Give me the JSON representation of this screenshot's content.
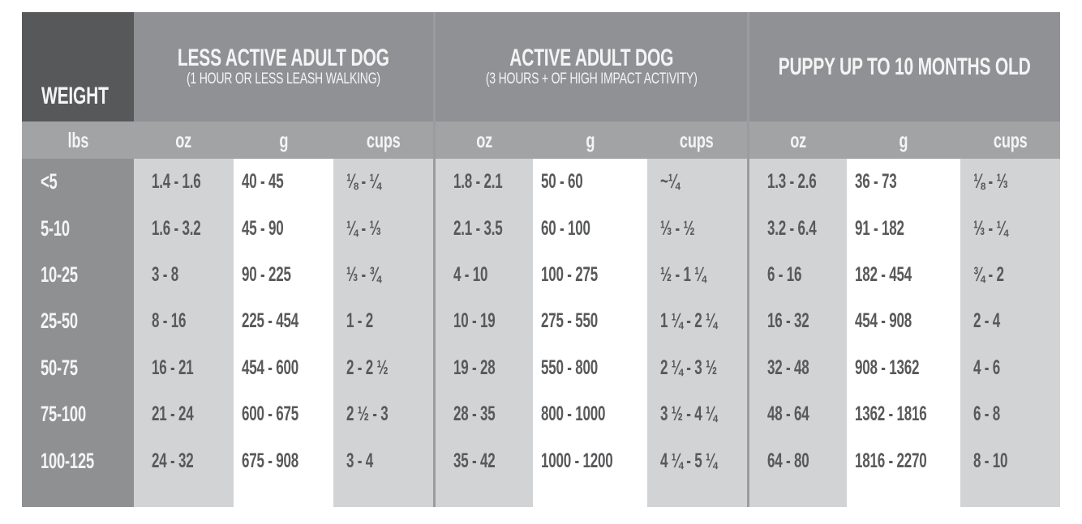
{
  "colors": {
    "page_bg": "#FFFFFF",
    "weight_head_bg": "#57585A",
    "section_head_bg": "#909194",
    "subhead_bg": "#A2A3A5",
    "lbs_col_bg": "#8F9092",
    "light_col_bg": "#D2D3D4",
    "white_col_bg": "#FFFFFF",
    "divider": "#9B9C9E",
    "text_dark": "#58595B",
    "text_light": "#F4F4F5"
  },
  "table": {
    "weight_header": "WEIGHT",
    "weight_unit": "lbs",
    "sections": [
      {
        "title": "LESS ACTIVE ADULT DOG",
        "subtitle": "(1 HOUR OR LESS LEASH WALKING)",
        "units": [
          "oz",
          "g",
          "cups"
        ]
      },
      {
        "title": "ACTIVE ADULT DOG",
        "subtitle": "(3 HOURS + OF HIGH IMPACT ACTIVITY)",
        "units": [
          "oz",
          "g",
          "cups"
        ]
      },
      {
        "title": "PUPPY UP TO 10 MONTHS OLD",
        "subtitle": "",
        "units": [
          "oz",
          "g",
          "cups"
        ]
      }
    ],
    "rows": [
      {
        "weight": "<5",
        "cells": [
          "1.4 - 1.6",
          "40 - 45",
          "⅛ - ¼",
          "1.8 - 2.1",
          "50 - 60",
          "~¼",
          "1.3 - 2.6",
          "36 - 73",
          "⅛ - ⅓"
        ]
      },
      {
        "weight": "5-10",
        "cells": [
          "1.6 - 3.2",
          "45 - 90",
          "¼ - ⅓",
          "2.1 - 3.5",
          "60 - 100",
          "⅓ - ½",
          "3.2 - 6.4",
          "91 - 182",
          "⅓ - ¼"
        ]
      },
      {
        "weight": "10-25",
        "cells": [
          "3 - 8",
          "90 - 225",
          "⅓ - ¾",
          "4 - 10",
          "100 - 275",
          "½ - 1 ¼",
          "6 - 16",
          "182 - 454",
          "¾ - 2"
        ]
      },
      {
        "weight": "25-50",
        "cells": [
          "8 - 16",
          "225 - 454",
          "1 - 2",
          "10 - 19",
          "275 - 550",
          "1 ¼ - 2 ¼",
          "16 - 32",
          "454 - 908",
          "2 - 4"
        ]
      },
      {
        "weight": "50-75",
        "cells": [
          "16 - 21",
          "454 - 600",
          "2 - 2 ½",
          "19 - 28",
          "550 - 800",
          "2 ¼ - 3 ½",
          "32 - 48",
          "908 - 1362",
          "4 - 6"
        ]
      },
      {
        "weight": "75-100",
        "cells": [
          "21 - 24",
          "600 - 675",
          "2 ½ - 3",
          "28 - 35",
          "800 - 1000",
          "3 ½ - 4 ¼",
          "48 - 64",
          "1362 - 1816",
          "6 - 8"
        ]
      },
      {
        "weight": "100-125",
        "cells": [
          "24 - 32",
          "675 - 908",
          "3 - 4",
          "35 - 42",
          "1000 - 1200",
          "4 ¼ - 5 ¼",
          "64 - 80",
          "1816 - 2270",
          "8 - 10"
        ]
      }
    ]
  },
  "chart_data": {
    "type": "table",
    "row_header_label": "WEIGHT",
    "row_header_unit": "lbs",
    "column_groups": [
      {
        "label": "LESS ACTIVE ADULT DOG",
        "note": "(1 HOUR OR LESS LEASH WALKING)",
        "columns": [
          "oz",
          "g",
          "cups"
        ]
      },
      {
        "label": "ACTIVE ADULT DOG",
        "note": "(3 HOURS + OF HIGH IMPACT ACTIVITY)",
        "columns": [
          "oz",
          "g",
          "cups"
        ]
      },
      {
        "label": "PUPPY UP TO 10 MONTHS OLD",
        "note": "",
        "columns": [
          "oz",
          "g",
          "cups"
        ]
      }
    ],
    "rows": [
      {
        "weight_lbs": "<5",
        "less_active": {
          "oz": "1.4 - 1.6",
          "g": "40 - 45",
          "cups": "⅛ - ¼"
        },
        "active": {
          "oz": "1.8 - 2.1",
          "g": "50 - 60",
          "cups": "~¼"
        },
        "puppy": {
          "oz": "1.3 - 2.6",
          "g": "36 - 73",
          "cups": "⅛ - ⅓"
        }
      },
      {
        "weight_lbs": "5-10",
        "less_active": {
          "oz": "1.6 - 3.2",
          "g": "45 - 90",
          "cups": "¼ - ⅓"
        },
        "active": {
          "oz": "2.1 - 3.5",
          "g": "60 - 100",
          "cups": "⅓ - ½"
        },
        "puppy": {
          "oz": "3.2 - 6.4",
          "g": "91 - 182",
          "cups": "⅓ - ¼"
        }
      },
      {
        "weight_lbs": "10-25",
        "less_active": {
          "oz": "3 - 8",
          "g": "90 - 225",
          "cups": "⅓ - ¾"
        },
        "active": {
          "oz": "4 - 10",
          "g": "100 - 275",
          "cups": "½ - 1 ¼"
        },
        "puppy": {
          "oz": "6 - 16",
          "g": "182 - 454",
          "cups": "¾ - 2"
        }
      },
      {
        "weight_lbs": "25-50",
        "less_active": {
          "oz": "8 - 16",
          "g": "225 - 454",
          "cups": "1 - 2"
        },
        "active": {
          "oz": "10 - 19",
          "g": "275 - 550",
          "cups": "1 ¼ - 2 ¼"
        },
        "puppy": {
          "oz": "16 - 32",
          "g": "454 - 908",
          "cups": "2 - 4"
        }
      },
      {
        "weight_lbs": "50-75",
        "less_active": {
          "oz": "16 - 21",
          "g": "454 - 600",
          "cups": "2 - 2 ½"
        },
        "active": {
          "oz": "19 - 28",
          "g": "550 - 800",
          "cups": "2 ¼ - 3 ½"
        },
        "puppy": {
          "oz": "32 - 48",
          "g": "908 - 1362",
          "cups": "4 - 6"
        }
      },
      {
        "weight_lbs": "75-100",
        "less_active": {
          "oz": "21 - 24",
          "g": "600 - 675",
          "cups": "2 ½ - 3"
        },
        "active": {
          "oz": "28 - 35",
          "g": "800 - 1000",
          "cups": "3 ½ - 4 ¼"
        },
        "puppy": {
          "oz": "48 - 64",
          "g": "1362 - 1816",
          "cups": "6 - 8"
        }
      },
      {
        "weight_lbs": "100-125",
        "less_active": {
          "oz": "24 - 32",
          "g": "675 - 908",
          "cups": "3 - 4"
        },
        "active": {
          "oz": "35 - 42",
          "g": "1000 - 1200",
          "cups": "4 ¼ - 5 ¼"
        },
        "puppy": {
          "oz": "64 - 80",
          "g": "1816 - 2270",
          "cups": "8 - 10"
        }
      }
    ]
  }
}
